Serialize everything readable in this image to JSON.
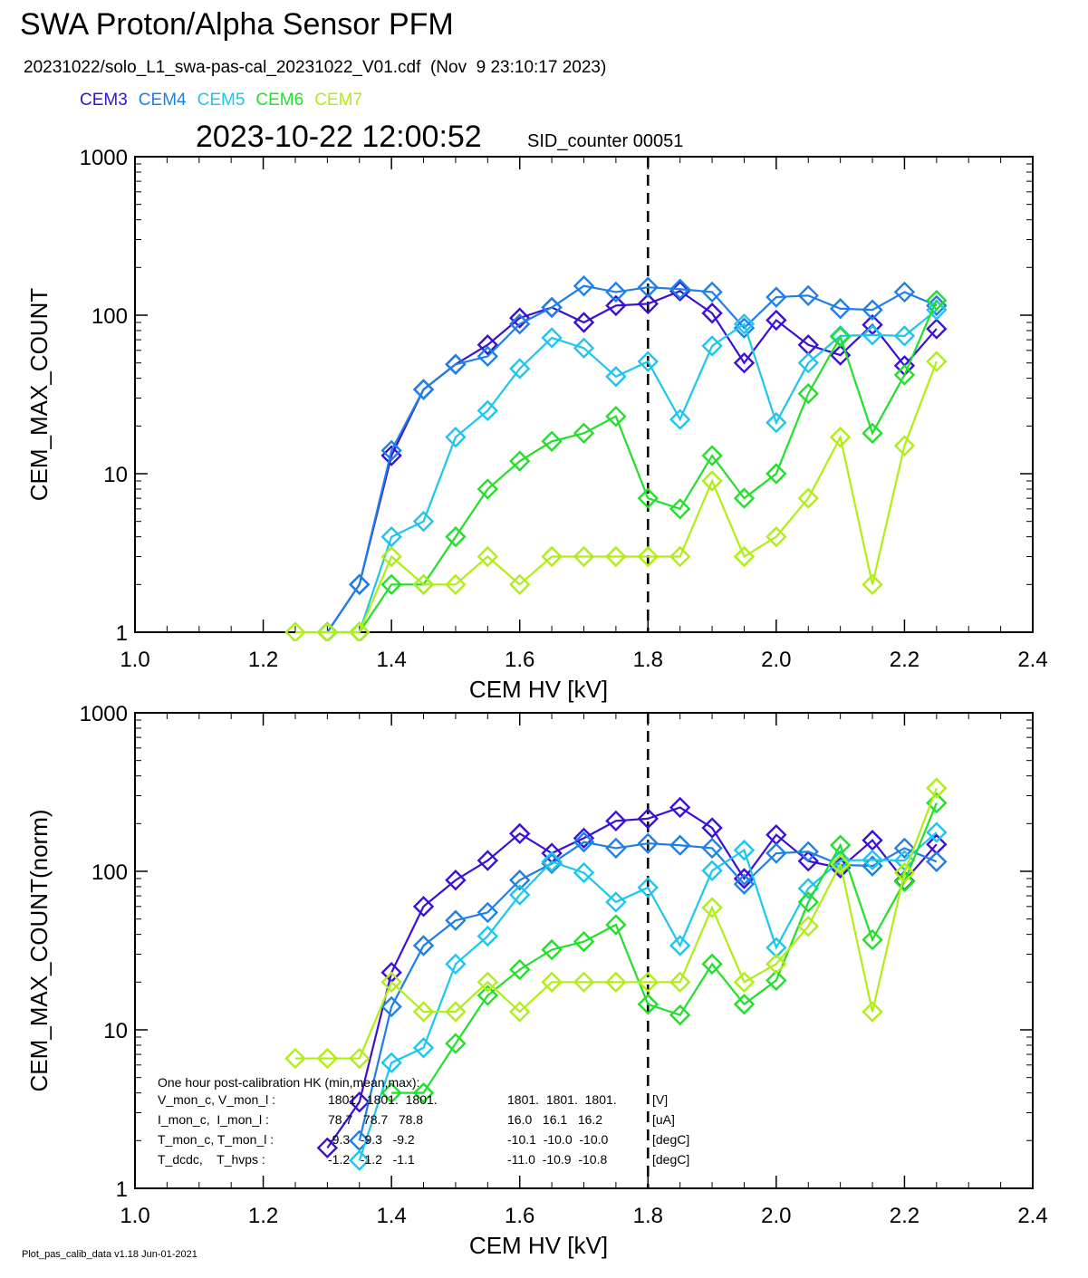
{
  "header": {
    "title": "SWA Proton/Alpha Sensor PFM",
    "subtitle": "20231022/solo_L1_swa-pas-cal_20231022_V01.cdf  (Nov  9 23:10:17 2023)",
    "timestamp": "2023-10-22 12:00:52",
    "sid_counter": "SID_counter 00051"
  },
  "legend": [
    {
      "name": "CEM3",
      "color": "#3b10d6"
    },
    {
      "name": "CEM4",
      "color": "#1f7fe6"
    },
    {
      "name": "CEM5",
      "color": "#1cc6ee"
    },
    {
      "name": "CEM6",
      "color": "#22e02a"
    },
    {
      "name": "CEM7",
      "color": "#b0ee14"
    }
  ],
  "hk_block": {
    "title": "One hour post-calibration HK (min,mean,max):",
    "rows": [
      {
        "label": "V_mon_c, V_mon_l :",
        "c_values": "1801.  1801.  1801.",
        "l_values": "1801.  1801.  1801.",
        "unit": "[V]"
      },
      {
        "label": "I_mon_c,  I_mon_l :",
        "c_values": "78.7   78.7   78.8",
        "l_values": "16.0   16.1   16.2",
        "unit": "[uA]"
      },
      {
        "label": "T_mon_c, T_mon_l :",
        "c_values": "-9.3   -9.3   -9.2",
        "l_values": "-10.1  -10.0  -10.0",
        "unit": "[degC]"
      },
      {
        "label": "T_dcdc,    T_hvps :",
        "c_values": "-1.2   -1.2   -1.1",
        "l_values": "-11.0  -10.9  -10.8",
        "unit": "[degC]"
      }
    ]
  },
  "footer": "Plot_pas_calib_data v1.18 Jun-01-2021",
  "chart_data": [
    {
      "type": "line",
      "title": "",
      "xlabel": "CEM HV [kV]",
      "ylabel": "CEM_MAX_COUNT",
      "xlim": [
        1.0,
        2.4
      ],
      "ylim": [
        1,
        1000
      ],
      "yscale": "log",
      "xticks": [
        "1.0",
        "1.2",
        "1.4",
        "1.6",
        "1.8",
        "2.0",
        "2.2",
        "2.4"
      ],
      "yticks": [
        "1",
        "10",
        "100",
        "1000"
      ],
      "marker": "diamond",
      "vline": 1.8,
      "x": [
        1.25,
        1.3,
        1.35,
        1.4,
        1.45,
        1.5,
        1.55,
        1.6,
        1.65,
        1.7,
        1.75,
        1.8,
        1.85,
        1.9,
        1.95,
        2.0,
        2.05,
        2.1,
        2.15,
        2.2,
        2.25
      ],
      "series": [
        {
          "name": "CEM3",
          "values": [
            null,
            1,
            2,
            13,
            34,
            49,
            65,
            96,
            112,
            90,
            115,
            118,
            142,
            103,
            50,
            93,
            65,
            56,
            87,
            48,
            82
          ]
        },
        {
          "name": "CEM4",
          "values": [
            null,
            1,
            2,
            14,
            34,
            49,
            55,
            88,
            112,
            153,
            140,
            150,
            146,
            140,
            83,
            130,
            133,
            110,
            108,
            140,
            115
          ]
        },
        {
          "name": "CEM5",
          "values": [
            null,
            1,
            1,
            4,
            5,
            17,
            25,
            46,
            72,
            62,
            41,
            51,
            22,
            64,
            88,
            21,
            50,
            74,
            75,
            74,
            108
          ]
        },
        {
          "name": "CEM6",
          "values": [
            null,
            null,
            1,
            2,
            2,
            4,
            8,
            12,
            16,
            18,
            23,
            7,
            6,
            13,
            7,
            10,
            32,
            73,
            18,
            42,
            124
          ]
        },
        {
          "name": "CEM7",
          "values": [
            1,
            1,
            1,
            3,
            2,
            2,
            3,
            2,
            3,
            3,
            3,
            3,
            3,
            9,
            3,
            4,
            7,
            17,
            2,
            15,
            51
          ]
        }
      ]
    },
    {
      "type": "line",
      "title": "",
      "xlabel": "CEM HV [kV]",
      "ylabel": "CEM_MAX_COUNT(norm)",
      "xlim": [
        1.0,
        2.4
      ],
      "ylim": [
        1,
        1000
      ],
      "yscale": "log",
      "xticks": [
        "1.0",
        "1.2",
        "1.4",
        "1.6",
        "1.8",
        "2.0",
        "2.2",
        "2.4"
      ],
      "yticks": [
        "1",
        "10",
        "100",
        "1000"
      ],
      "marker": "diamond",
      "vline": 1.8,
      "x": [
        1.25,
        1.3,
        1.35,
        1.4,
        1.45,
        1.5,
        1.55,
        1.6,
        1.65,
        1.7,
        1.75,
        1.8,
        1.85,
        1.9,
        1.95,
        2.0,
        2.05,
        2.1,
        2.15,
        2.2,
        2.25
      ],
      "series": [
        {
          "name": "CEM3",
          "values": [
            null,
            1.8,
            3.5,
            23,
            60,
            88,
            117,
            173,
            130,
            162,
            208,
            215,
            253,
            188,
            90,
            170,
            116,
            105,
            157,
            87,
            148
          ]
        },
        {
          "name": "CEM4",
          "values": [
            null,
            null,
            2,
            14,
            34,
            49,
            55,
            88,
            112,
            153,
            140,
            150,
            146,
            140,
            83,
            130,
            133,
            110,
            108,
            140,
            115
          ]
        },
        {
          "name": "CEM5",
          "values": [
            null,
            null,
            1.5,
            6.2,
            7.7,
            26,
            39,
            71,
            115,
            98,
            64,
            79,
            34,
            101,
            136,
            33,
            78,
            117,
            118,
            117,
            176
          ]
        },
        {
          "name": "CEM6",
          "values": [
            null,
            null,
            null,
            4,
            4,
            8.2,
            16.5,
            24,
            32,
            36,
            46,
            14.5,
            12.4,
            26,
            14.5,
            20.5,
            64,
            146,
            37,
            86,
            270
          ]
        },
        {
          "name": "CEM7",
          "values": [
            6.6,
            6.6,
            6.6,
            20,
            13,
            13,
            20,
            13,
            20,
            20,
            20,
            20,
            20,
            59,
            20,
            26,
            45,
            111,
            13,
            98,
            335
          ]
        }
      ]
    }
  ]
}
